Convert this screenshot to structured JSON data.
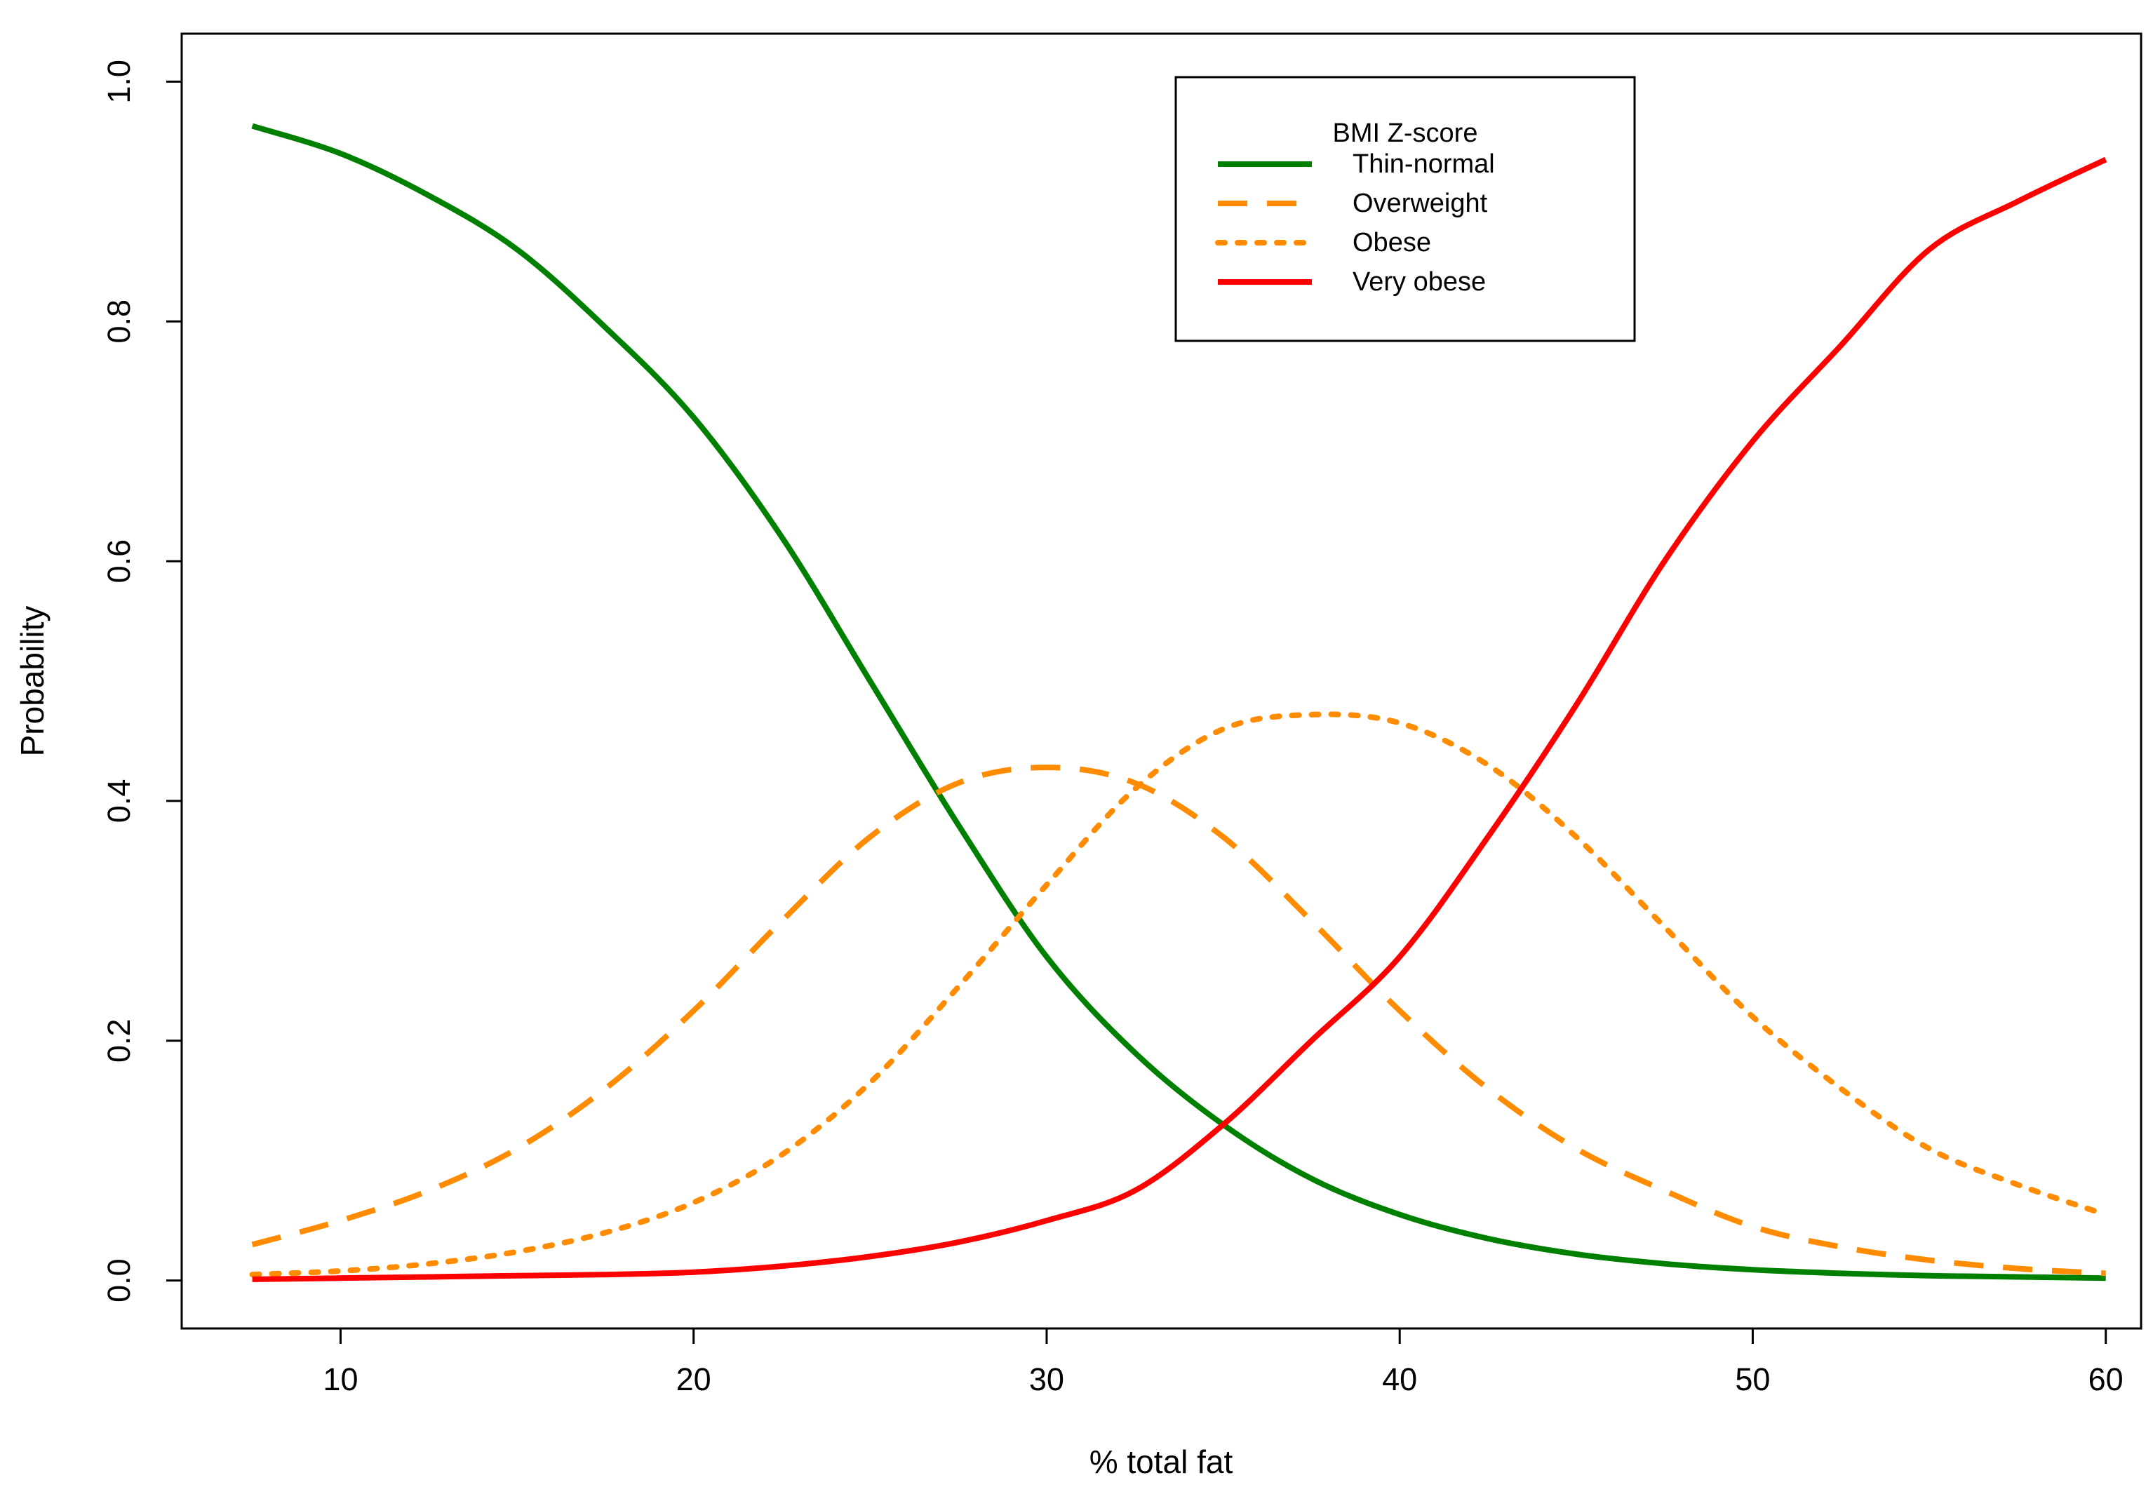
{
  "chart_data": {
    "type": "line",
    "title": "",
    "xlabel": "% total fat",
    "ylabel": "Probability",
    "xlim": [
      5.5,
      61
    ],
    "ylim": [
      -0.04,
      1.04
    ],
    "xticks": [
      10,
      20,
      30,
      40,
      50,
      60
    ],
    "yticks": [
      0.0,
      0.2,
      0.4,
      0.6,
      0.8,
      1.0
    ],
    "xtick_labels": [
      "10",
      "20",
      "30",
      "40",
      "50",
      "60"
    ],
    "ytick_labels": [
      "0.0",
      "0.2",
      "0.4",
      "0.6",
      "0.8",
      "1.0"
    ],
    "grid": false,
    "legend": {
      "title": "BMI Z-score",
      "position": "top-right"
    },
    "x": [
      7.5,
      10,
      12.5,
      15,
      17.5,
      20,
      22.5,
      25,
      27.5,
      30,
      32.5,
      35,
      37.5,
      40,
      42.5,
      45,
      47.5,
      50,
      52.5,
      55,
      57.5,
      60
    ],
    "series": [
      {
        "name": "Thin-normal",
        "style": "solid",
        "color": "#008000",
        "values": [
          0.963,
          0.94,
          0.905,
          0.86,
          0.795,
          0.72,
          0.62,
          0.5,
          0.38,
          0.27,
          0.19,
          0.13,
          0.085,
          0.055,
          0.035,
          0.022,
          0.014,
          0.009,
          0.006,
          0.004,
          0.003,
          0.002
        ]
      },
      {
        "name": "Overweight",
        "style": "dashed",
        "color": "#FF8C00",
        "values": [
          0.03,
          0.05,
          0.075,
          0.11,
          0.16,
          0.225,
          0.3,
          0.37,
          0.415,
          0.428,
          0.415,
          0.37,
          0.3,
          0.225,
          0.16,
          0.11,
          0.075,
          0.045,
          0.028,
          0.017,
          0.01,
          0.006
        ]
      },
      {
        "name": "Obese",
        "style": "dotted",
        "color": "#FF8C00",
        "values": [
          0.005,
          0.008,
          0.014,
          0.024,
          0.04,
          0.065,
          0.105,
          0.165,
          0.245,
          0.33,
          0.41,
          0.46,
          0.472,
          0.465,
          0.43,
          0.37,
          0.295,
          0.22,
          0.16,
          0.11,
          0.08,
          0.055
        ]
      },
      {
        "name": "Very obese",
        "style": "solid",
        "color": "#FF0000",
        "values": [
          0.001,
          0.002,
          0.003,
          0.004,
          0.005,
          0.007,
          0.012,
          0.02,
          0.032,
          0.05,
          0.075,
          0.13,
          0.2,
          0.27,
          0.37,
          0.48,
          0.6,
          0.7,
          0.78,
          0.86,
          0.9,
          0.935
        ]
      }
    ]
  }
}
